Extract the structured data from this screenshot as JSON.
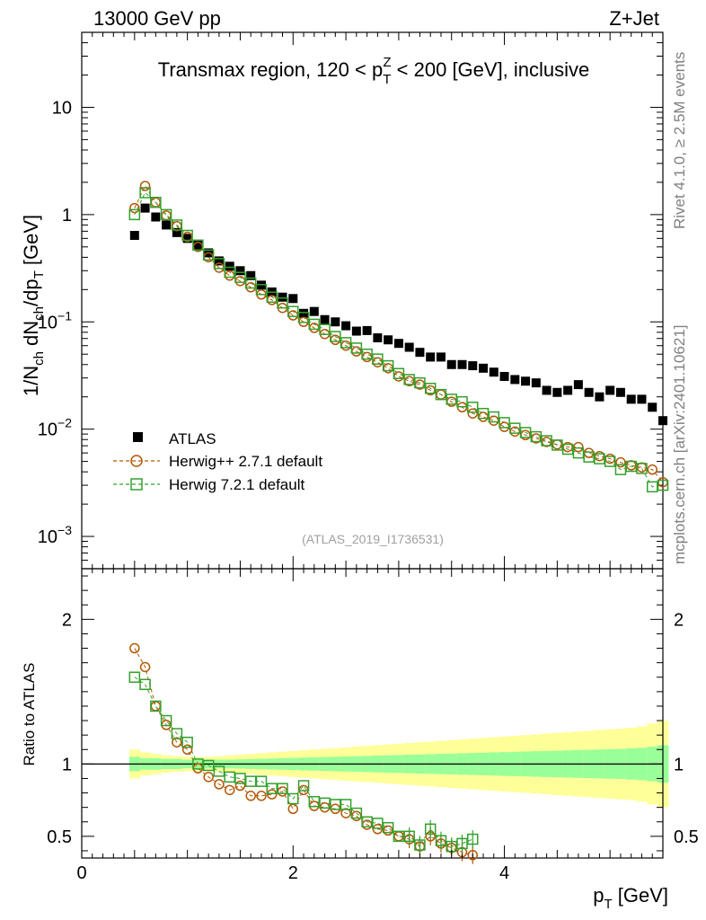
{
  "header": {
    "left": "13000 GeV pp",
    "right": "Z+Jet"
  },
  "side": {
    "rivet": "Rivet 4.1.0, ≥ 2.5M events",
    "mcplots": "mcplots.cern.ch [arXiv:2401.10621]"
  },
  "colors": {
    "atlas": "#000000",
    "herwigpp": "#b35806",
    "herwig7": "#33a02c",
    "band_inner": "#99ff99",
    "band_outer": "#ffff99"
  },
  "chart_data": [
    {
      "type": "scatter",
      "title": "Transmax region, 120 < p_T^Z < 200 [GeV], inclusive",
      "title_parts": {
        "pre": "Transmax region, 120 < p",
        "sub": "T",
        "sup": "Z",
        "post": " < 200 [GeV], inclusive"
      },
      "ylabel": "1/N_ch dN_ch/dp_T [GeV]",
      "ylabel_parts": {
        "a": "1/N",
        "a_sub": "ch",
        "b": " dN",
        "b_sub": "ch",
        "c": "/dp",
        "c_sub": "T",
        "d": " [GeV]"
      },
      "yscale": "log",
      "ylim": [
        0.0005,
        50
      ],
      "xlim": [
        0,
        5.5
      ],
      "y_ticks": [
        {
          "value": 0.001,
          "base": "10",
          "exp": "−3"
        },
        {
          "value": 0.01,
          "base": "10",
          "exp": "−2"
        },
        {
          "value": 0.1,
          "base": "10",
          "exp": "−1"
        },
        {
          "value": 1,
          "label": "1"
        },
        {
          "value": 10,
          "label": "10"
        }
      ],
      "watermark": "(ATLAS_2019_I1736531)",
      "legend_position": "middle-left",
      "series": [
        {
          "name": "ATLAS",
          "marker": "filled-square",
          "x": [
            0.5,
            0.6,
            0.7,
            0.8,
            0.9,
            1.0,
            1.1,
            1.2,
            1.3,
            1.4,
            1.5,
            1.6,
            1.7,
            1.8,
            1.9,
            2.0,
            2.1,
            2.2,
            2.3,
            2.4,
            2.5,
            2.6,
            2.7,
            2.8,
            2.9,
            3.0,
            3.1,
            3.2,
            3.3,
            3.4,
            3.5,
            3.6,
            3.7,
            3.8,
            3.9,
            4.0,
            4.1,
            4.2,
            4.3,
            4.4,
            4.5,
            4.6,
            4.7,
            4.8,
            4.9,
            5.0,
            5.1,
            5.2,
            5.3,
            5.4,
            5.5
          ],
          "y": [
            0.64,
            1.15,
            0.95,
            0.8,
            0.68,
            0.6,
            0.52,
            0.44,
            0.37,
            0.33,
            0.3,
            0.27,
            0.22,
            0.19,
            0.17,
            0.165,
            0.12,
            0.125,
            0.105,
            0.1,
            0.092,
            0.082,
            0.083,
            0.071,
            0.068,
            0.063,
            0.058,
            0.052,
            0.047,
            0.047,
            0.04,
            0.04,
            0.039,
            0.037,
            0.034,
            0.031,
            0.029,
            0.028,
            0.027,
            0.023,
            0.022,
            0.023,
            0.026,
            0.022,
            0.02,
            0.023,
            0.022,
            0.019,
            0.019,
            0.016,
            0.012
          ]
        },
        {
          "name": "Herwig++ 2.7.1 default",
          "marker": "open-circle",
          "x": [
            0.5,
            0.6,
            0.7,
            0.8,
            0.9,
            1.0,
            1.1,
            1.2,
            1.3,
            1.4,
            1.5,
            1.6,
            1.7,
            1.8,
            1.9,
            2.0,
            2.1,
            2.2,
            2.3,
            2.4,
            2.5,
            2.6,
            2.7,
            2.8,
            2.9,
            3.0,
            3.1,
            3.2,
            3.3,
            3.4,
            3.5,
            3.6,
            3.7,
            3.8,
            3.9,
            4.0,
            4.1,
            4.2,
            4.3,
            4.4,
            4.5,
            4.6,
            4.7,
            4.8,
            4.9,
            5.0,
            5.1,
            5.2,
            5.3,
            5.4,
            5.5
          ],
          "y": [
            1.15,
            1.85,
            1.3,
            0.98,
            0.78,
            0.62,
            0.5,
            0.4,
            0.32,
            0.27,
            0.24,
            0.21,
            0.18,
            0.16,
            0.135,
            0.115,
            0.1,
            0.088,
            0.077,
            0.068,
            0.06,
            0.053,
            0.047,
            0.042,
            0.037,
            0.031,
            0.028,
            0.026,
            0.023,
            0.021,
            0.018,
            0.016,
            0.014,
            0.013,
            0.012,
            0.0105,
            0.0095,
            0.0088,
            0.0082,
            0.0076,
            0.0072,
            0.0068,
            0.0068,
            0.006,
            0.0056,
            0.0053,
            0.0049,
            0.0046,
            0.0044,
            0.0042,
            0.0032
          ]
        },
        {
          "name": "Herwig 7.2.1 default",
          "marker": "open-square",
          "x": [
            0.5,
            0.6,
            0.7,
            0.8,
            0.9,
            1.0,
            1.1,
            1.2,
            1.3,
            1.4,
            1.5,
            1.6,
            1.7,
            1.8,
            1.9,
            2.0,
            2.1,
            2.2,
            2.3,
            2.4,
            2.5,
            2.6,
            2.7,
            2.8,
            2.9,
            3.0,
            3.1,
            3.2,
            3.3,
            3.4,
            3.5,
            3.6,
            3.7,
            3.8,
            3.9,
            4.0,
            4.1,
            4.2,
            4.3,
            4.4,
            4.5,
            4.6,
            4.7,
            4.8,
            4.9,
            5.0,
            5.1,
            5.2,
            5.3,
            5.4,
            5.5
          ],
          "y": [
            1.0,
            1.6,
            1.3,
            1.0,
            0.8,
            0.64,
            0.52,
            0.42,
            0.35,
            0.29,
            0.26,
            0.23,
            0.2,
            0.17,
            0.15,
            0.125,
            0.11,
            0.095,
            0.085,
            0.073,
            0.064,
            0.057,
            0.05,
            0.045,
            0.039,
            0.033,
            0.029,
            0.027,
            0.024,
            0.021,
            0.019,
            0.018,
            0.016,
            0.014,
            0.013,
            0.0115,
            0.0102,
            0.0093,
            0.0085,
            0.0078,
            0.0071,
            0.0065,
            0.006,
            0.0055,
            0.0053,
            0.005,
            0.0042,
            0.0045,
            0.0043,
            0.0029,
            0.003
          ]
        }
      ]
    },
    {
      "type": "scatter",
      "title": "",
      "ylabel": "Ratio to ATLAS",
      "xlabel": "p_T [GeV]",
      "xlabel_parts": {
        "a": "p",
        "a_sub": "T",
        "b": " [GeV]"
      },
      "xlim": [
        0,
        5.5
      ],
      "ylim": [
        0.35,
        2.35
      ],
      "x_ticks": [
        0,
        2,
        4
      ],
      "y_ticks": [
        0.5,
        1,
        2
      ],
      "reference_line": 1,
      "band": {
        "x": [
          0.5,
          0.6,
          0.7,
          0.8,
          0.9,
          1.0,
          1.1,
          1.2,
          1.3,
          1.4,
          1.5,
          1.6,
          1.7,
          1.8,
          1.9,
          2.0,
          2.1,
          2.2,
          2.3,
          2.4,
          2.5,
          2.6,
          2.7,
          2.8,
          2.9,
          3.0,
          3.1,
          3.2,
          3.3,
          3.4,
          3.5,
          3.6,
          3.7,
          3.8,
          3.9,
          4.0,
          4.1,
          4.2,
          4.3,
          4.4,
          4.5,
          4.6,
          4.7,
          4.8,
          4.9,
          5.0,
          5.1,
          5.2,
          5.3,
          5.4,
          5.5
        ],
        "inner": [
          0.05,
          0.04,
          0.04,
          0.035,
          0.035,
          0.03,
          0.03,
          0.03,
          0.03,
          0.03,
          0.032,
          0.034,
          0.036,
          0.038,
          0.04,
          0.042,
          0.044,
          0.046,
          0.048,
          0.05,
          0.052,
          0.054,
          0.056,
          0.058,
          0.06,
          0.062,
          0.064,
          0.066,
          0.068,
          0.07,
          0.072,
          0.074,
          0.076,
          0.078,
          0.08,
          0.082,
          0.084,
          0.086,
          0.088,
          0.09,
          0.092,
          0.094,
          0.096,
          0.098,
          0.1,
          0.102,
          0.104,
          0.108,
          0.112,
          0.12,
          0.13
        ],
        "outer": [
          0.1,
          0.08,
          0.07,
          0.06,
          0.055,
          0.05,
          0.05,
          0.05,
          0.055,
          0.06,
          0.065,
          0.07,
          0.075,
          0.08,
          0.085,
          0.09,
          0.095,
          0.1,
          0.105,
          0.11,
          0.115,
          0.12,
          0.125,
          0.13,
          0.135,
          0.14,
          0.145,
          0.15,
          0.155,
          0.16,
          0.165,
          0.17,
          0.175,
          0.18,
          0.185,
          0.19,
          0.195,
          0.2,
          0.205,
          0.21,
          0.215,
          0.22,
          0.225,
          0.23,
          0.235,
          0.24,
          0.245,
          0.25,
          0.26,
          0.28,
          0.3
        ]
      },
      "series": [
        {
          "name": "Herwig++ 2.7.1 default",
          "marker": "open-circle",
          "x": [
            0.5,
            0.6,
            0.7,
            0.8,
            0.9,
            1.0,
            1.1,
            1.2,
            1.3,
            1.4,
            1.5,
            1.6,
            1.7,
            1.8,
            1.9,
            2.0,
            2.1,
            2.2,
            2.3,
            2.4,
            2.5,
            2.6,
            2.7,
            2.8,
            2.9,
            3.0,
            3.1,
            3.2,
            3.3,
            3.4,
            3.5,
            3.6,
            3.7
          ],
          "y": [
            1.8,
            1.67,
            1.4,
            1.27,
            1.15,
            1.1,
            0.97,
            0.91,
            0.86,
            0.82,
            0.85,
            0.78,
            0.78,
            0.79,
            0.81,
            0.69,
            0.82,
            0.71,
            0.7,
            0.69,
            0.66,
            0.64,
            0.58,
            0.55,
            0.54,
            0.5,
            0.48,
            0.43,
            0.5,
            0.45,
            0.42,
            0.39,
            0.37
          ]
        },
        {
          "name": "Herwig 7.2.1 default",
          "marker": "open-square",
          "x": [
            0.5,
            0.6,
            0.7,
            0.8,
            0.9,
            1.0,
            1.1,
            1.2,
            1.3,
            1.4,
            1.5,
            1.6,
            1.7,
            1.8,
            1.9,
            2.0,
            2.1,
            2.2,
            2.3,
            2.4,
            2.5,
            2.6,
            2.7,
            2.8,
            2.9,
            3.0,
            3.1,
            3.2,
            3.3,
            3.4,
            3.5,
            3.6,
            3.7
          ],
          "y": [
            1.6,
            1.55,
            1.4,
            1.3,
            1.21,
            1.15,
            1.0,
            0.99,
            0.95,
            0.91,
            0.9,
            0.88,
            0.88,
            0.83,
            0.83,
            0.76,
            0.85,
            0.74,
            0.73,
            0.72,
            0.72,
            0.66,
            0.6,
            0.59,
            0.56,
            0.5,
            0.5,
            0.44,
            0.55,
            0.47,
            0.43,
            0.45,
            0.48
          ]
        }
      ]
    }
  ]
}
